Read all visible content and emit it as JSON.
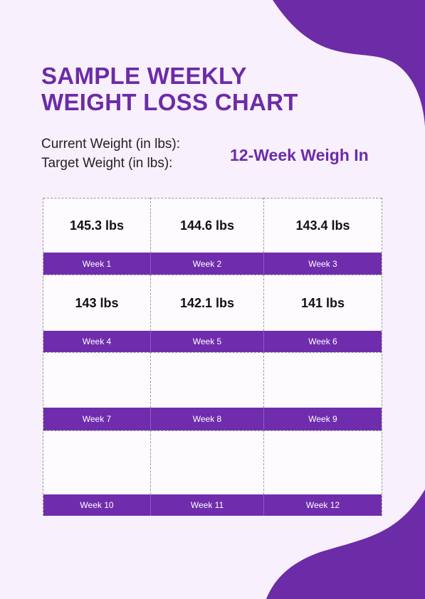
{
  "title_lines": [
    "SAMPLE WEEKLY",
    "WEIGHT LOSS CHART"
  ],
  "fields": {
    "current_weight_label": "Current Weight (in lbs):",
    "target_weight_label": "Target Weight (in lbs):"
  },
  "subtitle": "12-Week Weigh In",
  "colors": {
    "accent": "#6f2dad",
    "background": "#f8f0fc",
    "cell": "#fdfbfe"
  },
  "rows": [
    {
      "weeks": [
        {
          "value": "145.3 lbs",
          "label": "Week 1"
        },
        {
          "value": "144.6 lbs",
          "label": "Week 2"
        },
        {
          "value": "143.4 lbs",
          "label": "Week 3"
        }
      ]
    },
    {
      "weeks": [
        {
          "value": "143 lbs",
          "label": "Week 4"
        },
        {
          "value": "142.1 lbs",
          "label": "Week 5"
        },
        {
          "value": "141 lbs",
          "label": "Week 6"
        }
      ]
    },
    {
      "weeks": [
        {
          "value": "",
          "label": "Week 7"
        },
        {
          "value": "",
          "label": "Week 8"
        },
        {
          "value": "",
          "label": "Week 9"
        }
      ]
    },
    {
      "weeks": [
        {
          "value": "",
          "label": "Week 10"
        },
        {
          "value": "",
          "label": "Week 11"
        },
        {
          "value": "",
          "label": "Week 12"
        }
      ]
    }
  ]
}
